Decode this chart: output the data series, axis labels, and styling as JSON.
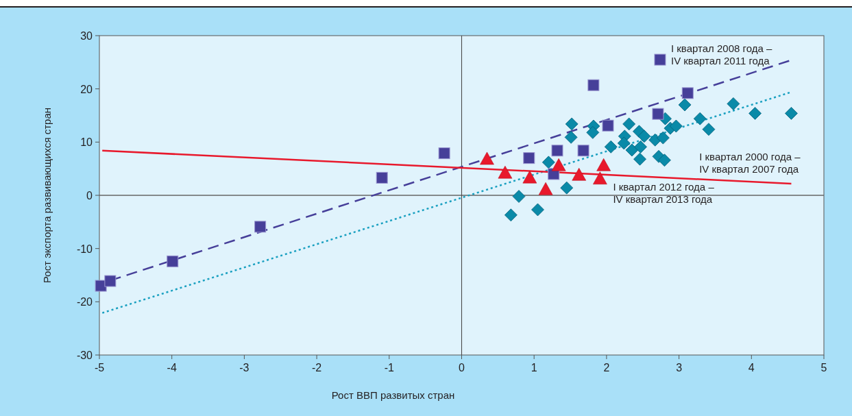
{
  "chart_data": {
    "type": "scatter",
    "xlabel": "Рост ВВП развитых стран",
    "ylabel": "Рост экспорта развивающихся стран",
    "xlim": [
      -5,
      5
    ],
    "ylim": [
      -30,
      30
    ],
    "xticks": [
      -5,
      -4,
      -3,
      -2,
      -1,
      0,
      1,
      2,
      3,
      4,
      5
    ],
    "yticks": [
      -30,
      -20,
      -10,
      0,
      10,
      20,
      30
    ],
    "legend": "top right",
    "ref_lines": [
      {
        "axis": "y",
        "value": 0
      },
      {
        "axis": "x",
        "value": 0
      }
    ],
    "series": [
      {
        "name": "I квартал 2000 года –\nIV квартал 2007 года",
        "marker": "diamond",
        "color": "#0a8aa8",
        "x": [
          0.68,
          0.79,
          1.05,
          1.2,
          1.45,
          1.52,
          1.51,
          1.82,
          1.81,
          2.06,
          2.31,
          2.25,
          2.24,
          2.35,
          2.45,
          2.52,
          2.47,
          2.46,
          2.67,
          2.72,
          3.08,
          2.81,
          2.8,
          2.78,
          2.88,
          2.96,
          3.29,
          3.41,
          3.75,
          4.05,
          4.55
        ],
        "values": [
          -3.7,
          -0.2,
          -2.7,
          6.2,
          1.4,
          13.4,
          10.9,
          13,
          11.8,
          9.1,
          13.4,
          11.1,
          9.8,
          8.5,
          12,
          11.1,
          9.1,
          6.8,
          10.4,
          7.3,
          17,
          14.4,
          6.6,
          10.8,
          12.6,
          13,
          14.4,
          12.4,
          17.2,
          15.4,
          15.4
        ]
      },
      {
        "name": "I квартал 2008 года –\nIV квартал 2011 года",
        "marker": "square",
        "color": "#463f99",
        "x": [
          -4.98,
          -4.85,
          -3.99,
          -2.78,
          -1.1,
          -0.24,
          0.93,
          1.32,
          1.27,
          1.68,
          1.82,
          2.02,
          2.71,
          3.12
        ],
        "values": [
          -17,
          -16.1,
          -12.4,
          -5.9,
          3.3,
          7.9,
          7,
          8.4,
          4,
          8.4,
          20.7,
          13.1,
          15.3,
          19.2
        ]
      },
      {
        "name": "I квартал 2012 года –\nIV квартал 2013 года",
        "marker": "triangle",
        "color": "#e8192c",
        "x": [
          0.35,
          0.6,
          0.94,
          1.16,
          1.34,
          1.62,
          1.91,
          1.96
        ],
        "values": [
          6.7,
          4.1,
          3.2,
          1,
          5.5,
          3.7,
          3,
          5.5
        ]
      },
      {
        "type": "line",
        "line_style": "dotted",
        "color": "#1aa0c0",
        "x": [
          -4.96,
          4.55
        ],
        "values": [
          -22.1,
          19.4
        ]
      },
      {
        "type": "line",
        "line_style": "dashed",
        "color": "#463f99",
        "x": [
          -4.85,
          4.55
        ],
        "values": [
          -16,
          25.4
        ]
      },
      {
        "type": "line",
        "line_style": "solid",
        "color": "#e8192c",
        "x": [
          -4.96,
          4.55
        ],
        "values": [
          8.4,
          2.2
        ]
      }
    ]
  }
}
